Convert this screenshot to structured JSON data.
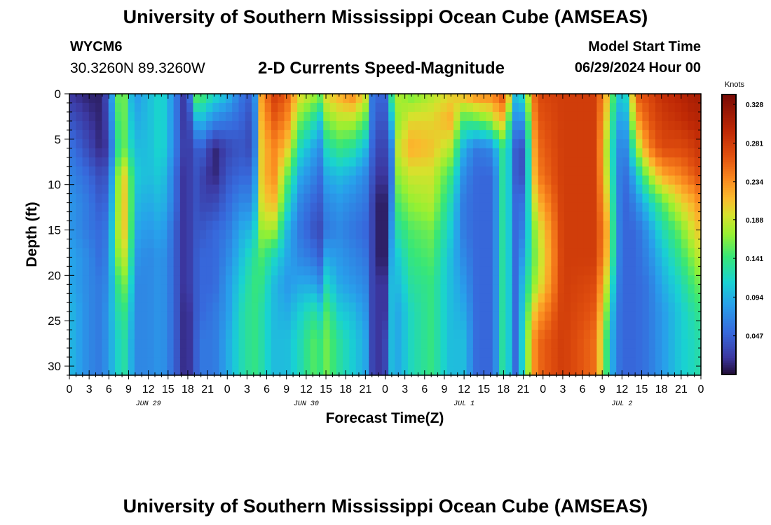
{
  "header": {
    "title": "University of Southern Mississippi Ocean Cube (AMSEAS)",
    "station_id": "WYCM6",
    "coordinates": "30.3260N  89.3260W",
    "subtitle": "2-D Currents Speed-Magnitude",
    "model_start_label": "Model Start Time",
    "model_start_value": "06/29/2024 Hour 00"
  },
  "footer": {
    "title": "University of Southern Mississippi Ocean Cube (AMSEAS)"
  },
  "chart_data": {
    "type": "heatmap",
    "title": "2-D Currents Speed-Magnitude",
    "xlabel": "Forecast Time(Z)",
    "ylabel": "Depth (ft)",
    "x_range_hours": [
      0,
      96
    ],
    "ylim": [
      0,
      31
    ],
    "y_ticks": [
      0,
      5,
      10,
      15,
      20,
      25,
      30
    ],
    "x_tick_labels": [
      "0",
      "3",
      "6",
      "9",
      "12",
      "15",
      "18",
      "21",
      "0",
      "3",
      "6",
      "9",
      "12",
      "15",
      "18",
      "21",
      "0",
      "3",
      "6",
      "9",
      "12",
      "15",
      "18",
      "21",
      "0",
      "3",
      "6",
      "9",
      "12",
      "15",
      "18",
      "21",
      "0"
    ],
    "day_labels": [
      {
        "label": "JUN 29",
        "hour": 12
      },
      {
        "label": "JUN 30",
        "hour": 36
      },
      {
        "label": "JUL 1",
        "hour": 60
      },
      {
        "label": "JUL 2",
        "hour": 84
      }
    ],
    "colorbar": {
      "unit": "Knots",
      "min": 0.0,
      "max": 0.34,
      "tick_labels": [
        "0.328",
        "0.281",
        "0.234",
        "0.188",
        "0.141",
        "0.094",
        "0.047"
      ],
      "tick_values": [
        0.328,
        0.281,
        0.234,
        0.188,
        0.141,
        0.094,
        0.047
      ]
    },
    "profile_depths_ft": [
      0,
      3,
      6,
      9,
      12,
      15,
      18,
      21,
      24,
      27,
      31
    ],
    "speed_profiles_knots": [
      {
        "hour": 0,
        "values": [
          0.02,
          0.04,
          0.06,
          0.07,
          0.08,
          0.08,
          0.09,
          0.09,
          0.1,
          0.1,
          0.1
        ]
      },
      {
        "hour": 3,
        "values": [
          0.01,
          0.02,
          0.03,
          0.05,
          0.06,
          0.06,
          0.07,
          0.07,
          0.07,
          0.07,
          0.07
        ]
      },
      {
        "hour": 5,
        "values": [
          0.01,
          0.01,
          0.01,
          0.03,
          0.04,
          0.05,
          0.05,
          0.06,
          0.06,
          0.06,
          0.06
        ]
      },
      {
        "hour": 6,
        "values": [
          0.05,
          0.04,
          0.03,
          0.05,
          0.06,
          0.07,
          0.08,
          0.08,
          0.09,
          0.09,
          0.09
        ]
      },
      {
        "hour": 7,
        "values": [
          0.13,
          0.12,
          0.11,
          0.13,
          0.14,
          0.15,
          0.14,
          0.12,
          0.11,
          0.1,
          0.1
        ]
      },
      {
        "hour": 8,
        "values": [
          0.19,
          0.18,
          0.17,
          0.22,
          0.22,
          0.22,
          0.2,
          0.17,
          0.15,
          0.14,
          0.14
        ]
      },
      {
        "hour": 9,
        "values": [
          0.11,
          0.12,
          0.13,
          0.17,
          0.18,
          0.18,
          0.16,
          0.14,
          0.12,
          0.11,
          0.11
        ]
      },
      {
        "hour": 10,
        "values": [
          0.08,
          0.09,
          0.1,
          0.11,
          0.1,
          0.09,
          0.08,
          0.07,
          0.07,
          0.07,
          0.07
        ]
      },
      {
        "hour": 12,
        "values": [
          0.1,
          0.1,
          0.1,
          0.1,
          0.09,
          0.08,
          0.07,
          0.07,
          0.07,
          0.07,
          0.07
        ]
      },
      {
        "hour": 14,
        "values": [
          0.12,
          0.12,
          0.12,
          0.11,
          0.1,
          0.09,
          0.08,
          0.08,
          0.08,
          0.08,
          0.08
        ]
      },
      {
        "hour": 16,
        "values": [
          0.07,
          0.07,
          0.07,
          0.06,
          0.06,
          0.05,
          0.05,
          0.05,
          0.05,
          0.05,
          0.05
        ]
      },
      {
        "hour": 17,
        "values": [
          0.03,
          0.03,
          0.03,
          0.02,
          0.02,
          0.02,
          0.02,
          0.02,
          0.02,
          0.02,
          0.02
        ]
      },
      {
        "hour": 18,
        "values": [
          0.01,
          0.01,
          0.02,
          0.02,
          0.02,
          0.02,
          0.02,
          0.02,
          0.01,
          0.01,
          0.01
        ]
      },
      {
        "hour": 19,
        "values": [
          0.16,
          0.09,
          0.04,
          0.04,
          0.04,
          0.04,
          0.04,
          0.04,
          0.04,
          0.04,
          0.04
        ]
      },
      {
        "hour": 20,
        "values": [
          0.15,
          0.1,
          0.05,
          0.03,
          0.03,
          0.04,
          0.05,
          0.05,
          0.05,
          0.06,
          0.06
        ]
      },
      {
        "hour": 22,
        "values": [
          0.12,
          0.07,
          0.01,
          0.01,
          0.03,
          0.05,
          0.05,
          0.05,
          0.06,
          0.06,
          0.06
        ]
      },
      {
        "hour": 24,
        "values": [
          0.1,
          0.06,
          0.03,
          0.04,
          0.05,
          0.06,
          0.07,
          0.08,
          0.08,
          0.09,
          0.09
        ]
      },
      {
        "hour": 26,
        "values": [
          0.06,
          0.05,
          0.04,
          0.05,
          0.07,
          0.09,
          0.1,
          0.11,
          0.12,
          0.12,
          0.12
        ]
      },
      {
        "hour": 28,
        "values": [
          0.04,
          0.03,
          0.03,
          0.05,
          0.07,
          0.1,
          0.13,
          0.14,
          0.14,
          0.14,
          0.14
        ]
      },
      {
        "hour": 29,
        "values": [
          0.22,
          0.21,
          0.2,
          0.2,
          0.19,
          0.17,
          0.15,
          0.14,
          0.13,
          0.13,
          0.13
        ]
      },
      {
        "hour": 31,
        "values": [
          0.28,
          0.26,
          0.24,
          0.24,
          0.22,
          0.18,
          0.12,
          0.1,
          0.1,
          0.1,
          0.1
        ]
      },
      {
        "hour": 33,
        "values": [
          0.26,
          0.24,
          0.21,
          0.16,
          0.13,
          0.1,
          0.09,
          0.08,
          0.09,
          0.1,
          0.1
        ]
      },
      {
        "hour": 35,
        "values": [
          0.2,
          0.16,
          0.12,
          0.09,
          0.07,
          0.06,
          0.07,
          0.09,
          0.11,
          0.12,
          0.12
        ]
      },
      {
        "hour": 37,
        "values": [
          0.18,
          0.13,
          0.09,
          0.07,
          0.05,
          0.04,
          0.06,
          0.09,
          0.13,
          0.15,
          0.15
        ]
      },
      {
        "hour": 38,
        "values": [
          0.16,
          0.1,
          0.07,
          0.05,
          0.04,
          0.03,
          0.04,
          0.07,
          0.11,
          0.14,
          0.14
        ]
      },
      {
        "hour": 39,
        "values": [
          0.2,
          0.16,
          0.12,
          0.09,
          0.07,
          0.06,
          0.09,
          0.12,
          0.15,
          0.16,
          0.16
        ]
      },
      {
        "hour": 41,
        "values": [
          0.22,
          0.18,
          0.14,
          0.1,
          0.08,
          0.07,
          0.08,
          0.09,
          0.11,
          0.13,
          0.13
        ]
      },
      {
        "hour": 43,
        "values": [
          0.24,
          0.18,
          0.13,
          0.09,
          0.07,
          0.06,
          0.07,
          0.08,
          0.1,
          0.11,
          0.11
        ]
      },
      {
        "hour": 45,
        "values": [
          0.2,
          0.15,
          0.1,
          0.07,
          0.06,
          0.05,
          0.06,
          0.07,
          0.08,
          0.09,
          0.09
        ]
      },
      {
        "hour": 46,
        "values": [
          0.06,
          0.06,
          0.05,
          0.04,
          0.03,
          0.03,
          0.03,
          0.03,
          0.03,
          0.03,
          0.03
        ]
      },
      {
        "hour": 47,
        "values": [
          0.05,
          0.04,
          0.03,
          0.02,
          0.01,
          0.01,
          0.01,
          0.02,
          0.02,
          0.02,
          0.02
        ]
      },
      {
        "hour": 48,
        "values": [
          0.05,
          0.04,
          0.03,
          0.02,
          0.01,
          0.01,
          0.01,
          0.02,
          0.02,
          0.03,
          0.03
        ]
      },
      {
        "hour": 49,
        "values": [
          0.14,
          0.1,
          0.07,
          0.06,
          0.07,
          0.08,
          0.09,
          0.1,
          0.1,
          0.1,
          0.1
        ]
      },
      {
        "hour": 50,
        "values": [
          0.18,
          0.17,
          0.19,
          0.17,
          0.15,
          0.13,
          0.11,
          0.1,
          0.09,
          0.09,
          0.09
        ]
      },
      {
        "hour": 52,
        "values": [
          0.16,
          0.2,
          0.22,
          0.19,
          0.17,
          0.15,
          0.14,
          0.13,
          0.12,
          0.12,
          0.12
        ]
      },
      {
        "hour": 55,
        "values": [
          0.18,
          0.2,
          0.21,
          0.19,
          0.18,
          0.16,
          0.15,
          0.14,
          0.14,
          0.14,
          0.14
        ]
      },
      {
        "hour": 58,
        "values": [
          0.2,
          0.22,
          0.18,
          0.14,
          0.12,
          0.11,
          0.1,
          0.1,
          0.1,
          0.1,
          0.1
        ]
      },
      {
        "hour": 60,
        "values": [
          0.22,
          0.14,
          0.09,
          0.07,
          0.06,
          0.06,
          0.07,
          0.08,
          0.09,
          0.1,
          0.1
        ]
      },
      {
        "hour": 62,
        "values": [
          0.24,
          0.15,
          0.06,
          0.05,
          0.05,
          0.05,
          0.05,
          0.05,
          0.05,
          0.05,
          0.05
        ]
      },
      {
        "hour": 64,
        "values": [
          0.24,
          0.17,
          0.07,
          0.05,
          0.05,
          0.05,
          0.05,
          0.05,
          0.05,
          0.05,
          0.05
        ]
      },
      {
        "hour": 65,
        "values": [
          0.25,
          0.2,
          0.1,
          0.08,
          0.08,
          0.08,
          0.08,
          0.08,
          0.08,
          0.08,
          0.08
        ]
      },
      {
        "hour": 66,
        "values": [
          0.27,
          0.21,
          0.14,
          0.14,
          0.14,
          0.14,
          0.14,
          0.14,
          0.14,
          0.14,
          0.14
        ]
      },
      {
        "hour": 67,
        "values": [
          0.2,
          0.13,
          0.1,
          0.1,
          0.1,
          0.1,
          0.1,
          0.1,
          0.1,
          0.1,
          0.1
        ]
      },
      {
        "hour": 68,
        "values": [
          0.08,
          0.06,
          0.03,
          0.03,
          0.04,
          0.04,
          0.04,
          0.04,
          0.04,
          0.04,
          0.04
        ]
      },
      {
        "hour": 69,
        "values": [
          0.13,
          0.08,
          0.04,
          0.04,
          0.06,
          0.07,
          0.09,
          0.11,
          0.12,
          0.13,
          0.13
        ]
      },
      {
        "hour": 71,
        "values": [
          0.27,
          0.26,
          0.25,
          0.24,
          0.21,
          0.18,
          0.17,
          0.18,
          0.22,
          0.25,
          0.25
        ]
      },
      {
        "hour": 75,
        "values": [
          0.28,
          0.28,
          0.28,
          0.28,
          0.28,
          0.28,
          0.28,
          0.28,
          0.28,
          0.28,
          0.28
        ]
      },
      {
        "hour": 80,
        "values": [
          0.28,
          0.28,
          0.28,
          0.28,
          0.28,
          0.28,
          0.28,
          0.27,
          0.26,
          0.25,
          0.25
        ]
      },
      {
        "hour": 82,
        "values": [
          0.2,
          0.18,
          0.16,
          0.17,
          0.19,
          0.21,
          0.2,
          0.17,
          0.14,
          0.12,
          0.12
        ]
      },
      {
        "hour": 83,
        "values": [
          0.12,
          0.1,
          0.09,
          0.09,
          0.09,
          0.09,
          0.09,
          0.08,
          0.07,
          0.07,
          0.07
        ]
      },
      {
        "hour": 84,
        "values": [
          0.1,
          0.08,
          0.06,
          0.05,
          0.05,
          0.05,
          0.05,
          0.05,
          0.05,
          0.05,
          0.05
        ]
      },
      {
        "hour": 85,
        "values": [
          0.13,
          0.1,
          0.08,
          0.06,
          0.05,
          0.05,
          0.05,
          0.05,
          0.05,
          0.05,
          0.05
        ]
      },
      {
        "hour": 86,
        "values": [
          0.26,
          0.22,
          0.16,
          0.1,
          0.07,
          0.05,
          0.05,
          0.05,
          0.05,
          0.05,
          0.05
        ]
      },
      {
        "hour": 88,
        "values": [
          0.27,
          0.26,
          0.24,
          0.17,
          0.11,
          0.08,
          0.07,
          0.06,
          0.06,
          0.06,
          0.06
        ]
      },
      {
        "hour": 90,
        "values": [
          0.29,
          0.28,
          0.27,
          0.22,
          0.15,
          0.12,
          0.1,
          0.09,
          0.08,
          0.08,
          0.08
        ]
      },
      {
        "hour": 93,
        "values": [
          0.3,
          0.29,
          0.27,
          0.24,
          0.2,
          0.16,
          0.14,
          0.12,
          0.11,
          0.11,
          0.11
        ]
      },
      {
        "hour": 95,
        "values": [
          0.31,
          0.3,
          0.28,
          0.26,
          0.22,
          0.2,
          0.17,
          0.15,
          0.13,
          0.12,
          0.12
        ]
      },
      {
        "hour": 96,
        "values": [
          0.31,
          0.3,
          0.29,
          0.27,
          0.24,
          0.21,
          0.19,
          0.16,
          0.14,
          0.13,
          0.13
        ]
      }
    ]
  }
}
